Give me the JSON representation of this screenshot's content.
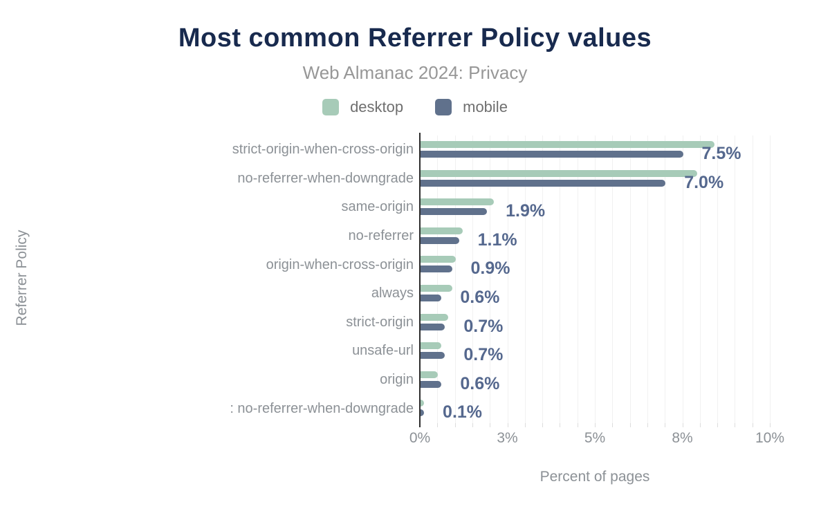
{
  "title": "Most common Referrer Policy values",
  "subtitle": "Web Almanac 2024: Privacy",
  "legend": {
    "items": [
      {
        "label": "desktop",
        "color": "#a7cbb8"
      },
      {
        "label": "mobile",
        "color": "#60718c"
      }
    ]
  },
  "axes": {
    "x_title": "Percent of pages",
    "y_title": "Referrer Policy",
    "x_ticks": [
      {
        "value": 0,
        "label": "0%"
      },
      {
        "value": 2.5,
        "label": "3%"
      },
      {
        "value": 5,
        "label": "5%"
      },
      {
        "value": 7.5,
        "label": "8%"
      },
      {
        "value": 10,
        "label": "10%"
      }
    ]
  },
  "chart_data": {
    "type": "bar",
    "orientation": "horizontal",
    "title": "Most common Referrer Policy values",
    "subtitle": "Web Almanac 2024: Privacy",
    "xlabel": "Percent of pages",
    "ylabel": "Referrer Policy",
    "xlim": [
      0,
      10.3
    ],
    "grid": "vertical, minor step 0.5%",
    "legend_position": "top-center",
    "categories": [
      "strict-origin-when-cross-origin",
      "no-referrer-when-downgrade",
      "same-origin",
      "no-referrer",
      "origin-when-cross-origin",
      "always",
      "strict-origin",
      "unsafe-url",
      "origin",
      ": no-referrer-when-downgrade"
    ],
    "series": [
      {
        "name": "desktop",
        "color": "#a7cbb8",
        "values": [
          8.4,
          7.9,
          2.1,
          1.2,
          1.0,
          0.9,
          0.8,
          0.6,
          0.5,
          0.1
        ]
      },
      {
        "name": "mobile",
        "color": "#60718c",
        "values": [
          7.5,
          7.0,
          1.9,
          1.1,
          0.9,
          0.6,
          0.7,
          0.7,
          0.6,
          0.1
        ]
      }
    ],
    "value_labels": [
      "7.5%",
      "7.0%",
      "1.9%",
      "1.1%",
      "0.9%",
      "0.6%",
      "0.7%",
      "0.7%",
      "0.6%",
      "0.1%"
    ],
    "value_labels_series": "mobile"
  },
  "colors": {
    "title_text": "#182a4e",
    "subtitle_text": "#979797",
    "legend_text": "#6f6f6f",
    "axis_text": "#8c9196",
    "value_label_text": "#55688e",
    "axis_line": "#2d2d2d",
    "gridline": "#f1f1f1"
  }
}
